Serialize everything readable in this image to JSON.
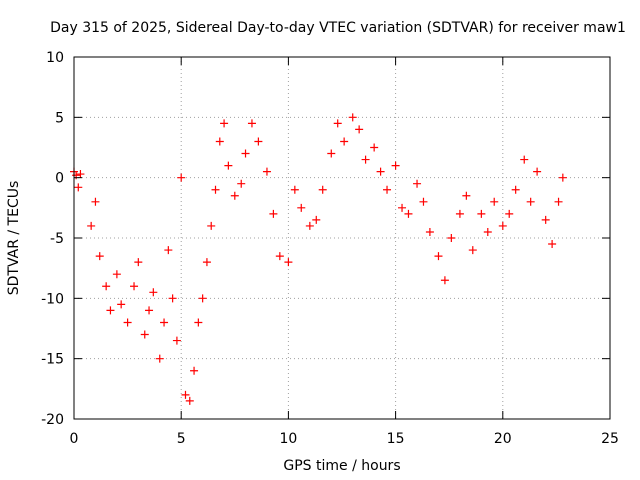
{
  "chart_data": {
    "type": "scatter",
    "title": "Day 315 of 2025, Sidereal Day-to-day VTEC variation (SDTVAR) for receiver maw1",
    "xlabel": "GPS time / hours",
    "ylabel": "SDTVAR / TECUs",
    "xlim": [
      0,
      25
    ],
    "ylim": [
      -20,
      10
    ],
    "xticks": [
      0,
      5,
      10,
      15,
      20,
      25
    ],
    "xtick_labels": [
      "0",
      "5",
      "10",
      "15",
      "20",
      "25"
    ],
    "yticks": [
      -20,
      -15,
      -10,
      -5,
      0,
      5,
      10
    ],
    "ytick_labels": [
      "-20",
      "-15",
      "-10",
      "-5",
      "0",
      "5",
      "10"
    ],
    "grid": true,
    "marker": "+",
    "series_color": "#ff0000",
    "series": [
      {
        "name": "maw1",
        "x": [
          0.0,
          0.1,
          0.2,
          0.3,
          0.8,
          1.0,
          1.2,
          1.5,
          1.7,
          2.0,
          2.2,
          2.5,
          2.8,
          3.0,
          3.3,
          3.5,
          3.7,
          4.0,
          4.2,
          4.4,
          4.6,
          4.8,
          5.0,
          5.2,
          5.4,
          5.6,
          5.8,
          6.0,
          6.2,
          6.4,
          6.6,
          6.8,
          7.0,
          7.2,
          7.5,
          7.8,
          8.0,
          8.3,
          8.6,
          9.0,
          9.3,
          9.6,
          10.0,
          10.3,
          10.6,
          11.0,
          11.3,
          11.6,
          12.0,
          12.3,
          12.6,
          13.0,
          13.3,
          13.6,
          14.0,
          14.3,
          14.6,
          15.0,
          15.3,
          15.6,
          16.0,
          16.3,
          16.6,
          17.0,
          17.3,
          17.6,
          18.0,
          18.3,
          18.6,
          19.0,
          19.3,
          19.6,
          20.0,
          20.3,
          20.6,
          21.0,
          21.3,
          21.6,
          22.0,
          22.3,
          22.6,
          22.8
        ],
        "y": [
          0.5,
          0.2,
          -0.8,
          0.3,
          -4.0,
          -2.0,
          -6.5,
          -9.0,
          -11.0,
          -8.0,
          -10.5,
          -12.0,
          -9.0,
          -7.0,
          -13.0,
          -11.0,
          -9.5,
          -15.0,
          -12.0,
          -6.0,
          -10.0,
          -13.5,
          0.0,
          -18.0,
          -18.5,
          -16.0,
          -12.0,
          -10.0,
          -7.0,
          -4.0,
          -1.0,
          3.0,
          4.5,
          1.0,
          -1.5,
          -0.5,
          2.0,
          4.5,
          3.0,
          0.5,
          -3.0,
          -6.5,
          -7.0,
          -1.0,
          -2.5,
          -4.0,
          -3.5,
          -1.0,
          2.0,
          4.5,
          3.0,
          5.0,
          4.0,
          1.5,
          2.5,
          0.5,
          -1.0,
          1.0,
          -2.5,
          -3.0,
          -0.5,
          -2.0,
          -4.5,
          -6.5,
          -8.5,
          -5.0,
          -3.0,
          -1.5,
          -6.0,
          -3.0,
          -4.5,
          -2.0,
          -4.0,
          -3.0,
          -1.0,
          1.5,
          -2.0,
          0.5,
          -3.5,
          -5.5,
          -2.0,
          0.0
        ]
      }
    ]
  }
}
